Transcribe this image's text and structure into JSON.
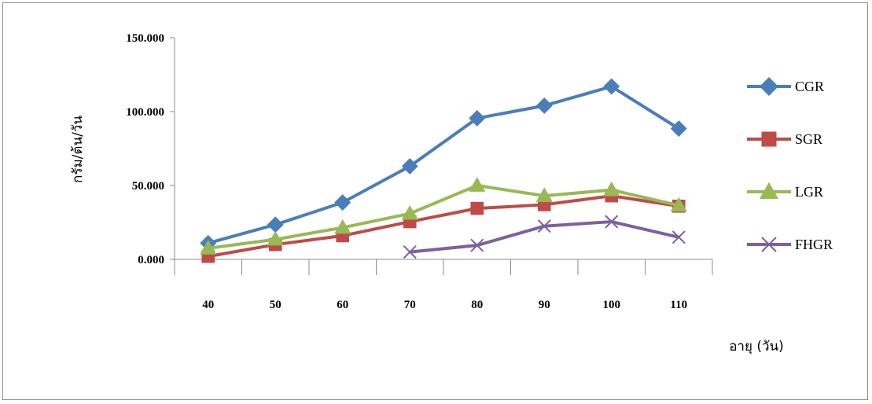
{
  "chart_data": {
    "type": "line",
    "title": "",
    "xlabel": "อายุ (วัน)",
    "ylabel": "กรัม/ต้น/วัน",
    "categories": [
      "40",
      "50",
      "60",
      "70",
      "80",
      "90",
      "100",
      "110"
    ],
    "y_ticks": [
      "0.000",
      "50.000",
      "100.000",
      "150.000"
    ],
    "ylim": [
      0,
      150
    ],
    "grid": false,
    "legend_position": "right",
    "series": [
      {
        "name": "CGR",
        "color": "#4a7ebb",
        "marker": "diamond",
        "values": [
          11,
          23.5,
          38.5,
          63,
          95.5,
          104,
          117,
          88.5
        ]
      },
      {
        "name": "SGR",
        "color": "#be4b48",
        "marker": "square",
        "values": [
          2,
          10,
          16,
          25.5,
          34.5,
          37,
          43,
          36
        ]
      },
      {
        "name": "LGR",
        "color": "#98b954",
        "marker": "triangle",
        "values": [
          7.5,
          13.5,
          21.5,
          31,
          50,
          43,
          47,
          36.5
        ]
      },
      {
        "name": "FHGR",
        "color": "#7d60a0",
        "marker": "x",
        "values": [
          null,
          null,
          null,
          5,
          9.5,
          22.5,
          25.5,
          15
        ]
      }
    ]
  }
}
